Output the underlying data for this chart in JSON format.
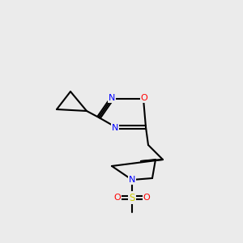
{
  "background_color": "#ebebeb",
  "bond_color": "#000000",
  "bond_width": 1.5,
  "atom_labels": {
    "N1": {
      "text": "N",
      "color": "#0000ff",
      "fontsize": 9
    },
    "N2": {
      "text": "N",
      "color": "#0000ff",
      "fontsize": 9
    },
    "O": {
      "text": "O",
      "color": "#ff0000",
      "fontsize": 9
    },
    "N3": {
      "text": "N",
      "color": "#0000ff",
      "fontsize": 9
    },
    "S": {
      "text": "S",
      "color": "#cccc00",
      "fontsize": 9
    },
    "O2": {
      "text": "O",
      "color": "#ff0000",
      "fontsize": 9
    },
    "O3": {
      "text": "O",
      "color": "#ff0000",
      "fontsize": 9
    }
  }
}
